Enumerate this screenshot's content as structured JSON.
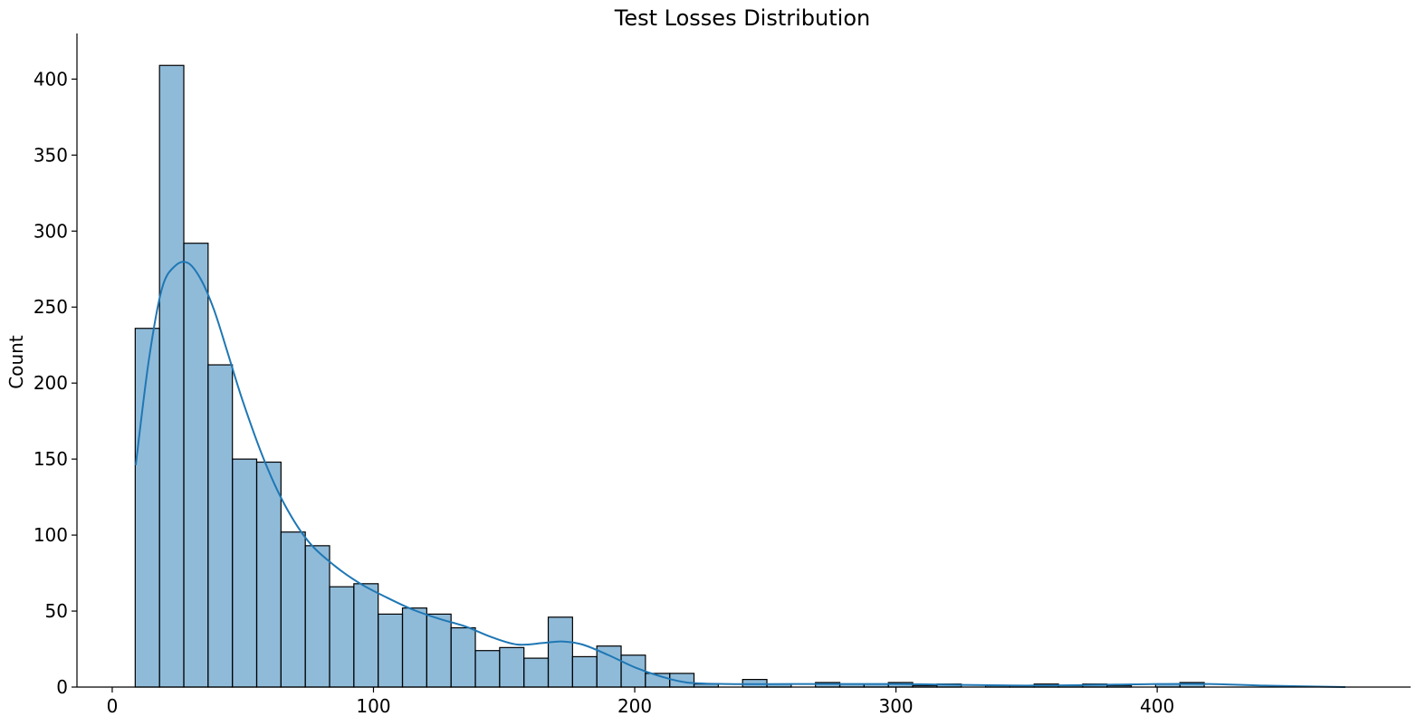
{
  "chart_data": {
    "type": "bar",
    "title": "Test Losses Distribution",
    "xlabel": "",
    "ylabel": "Count",
    "xlim": [
      -13.5,
      497
    ],
    "ylim": [
      0,
      430
    ],
    "xticks": [
      0,
      100,
      200,
      300,
      400
    ],
    "yticks": [
      0,
      50,
      100,
      150,
      200,
      250,
      300,
      350,
      400
    ],
    "grid": false,
    "bar_color": "#1f77b4",
    "bar_fill_opacity": 0.5,
    "edge_color": "#000000",
    "bins": {
      "start": 8.8,
      "width": 9.3,
      "counts": [
        236,
        409,
        292,
        212,
        150,
        148,
        102,
        93,
        66,
        68,
        48,
        52,
        48,
        39,
        24,
        26,
        19,
        46,
        20,
        27,
        21,
        9,
        9,
        2,
        0,
        5,
        2,
        0,
        3,
        2,
        2,
        3,
        1,
        2,
        0,
        1,
        1,
        2,
        1,
        2,
        1,
        0,
        2,
        3,
        0,
        0,
        0,
        0,
        0,
        0
      ]
    },
    "kde": {
      "name": "",
      "color": "#1f77b4",
      "x": [
        9,
        14,
        19,
        24,
        29,
        34,
        39,
        44,
        50,
        58,
        66,
        75,
        85,
        95,
        105,
        115,
        125,
        135,
        145,
        155,
        165,
        172,
        180,
        190,
        200,
        210,
        220,
        235,
        260,
        300,
        350,
        400,
        420,
        440,
        472
      ],
      "y": [
        146,
        215,
        262,
        277,
        279,
        268,
        248,
        221,
        188,
        150,
        120,
        96,
        80,
        68,
        59,
        51,
        45,
        40,
        33,
        28,
        29,
        30,
        28,
        21,
        13,
        7,
        3,
        2,
        2,
        2,
        1,
        2,
        2,
        1,
        0
      ]
    }
  }
}
